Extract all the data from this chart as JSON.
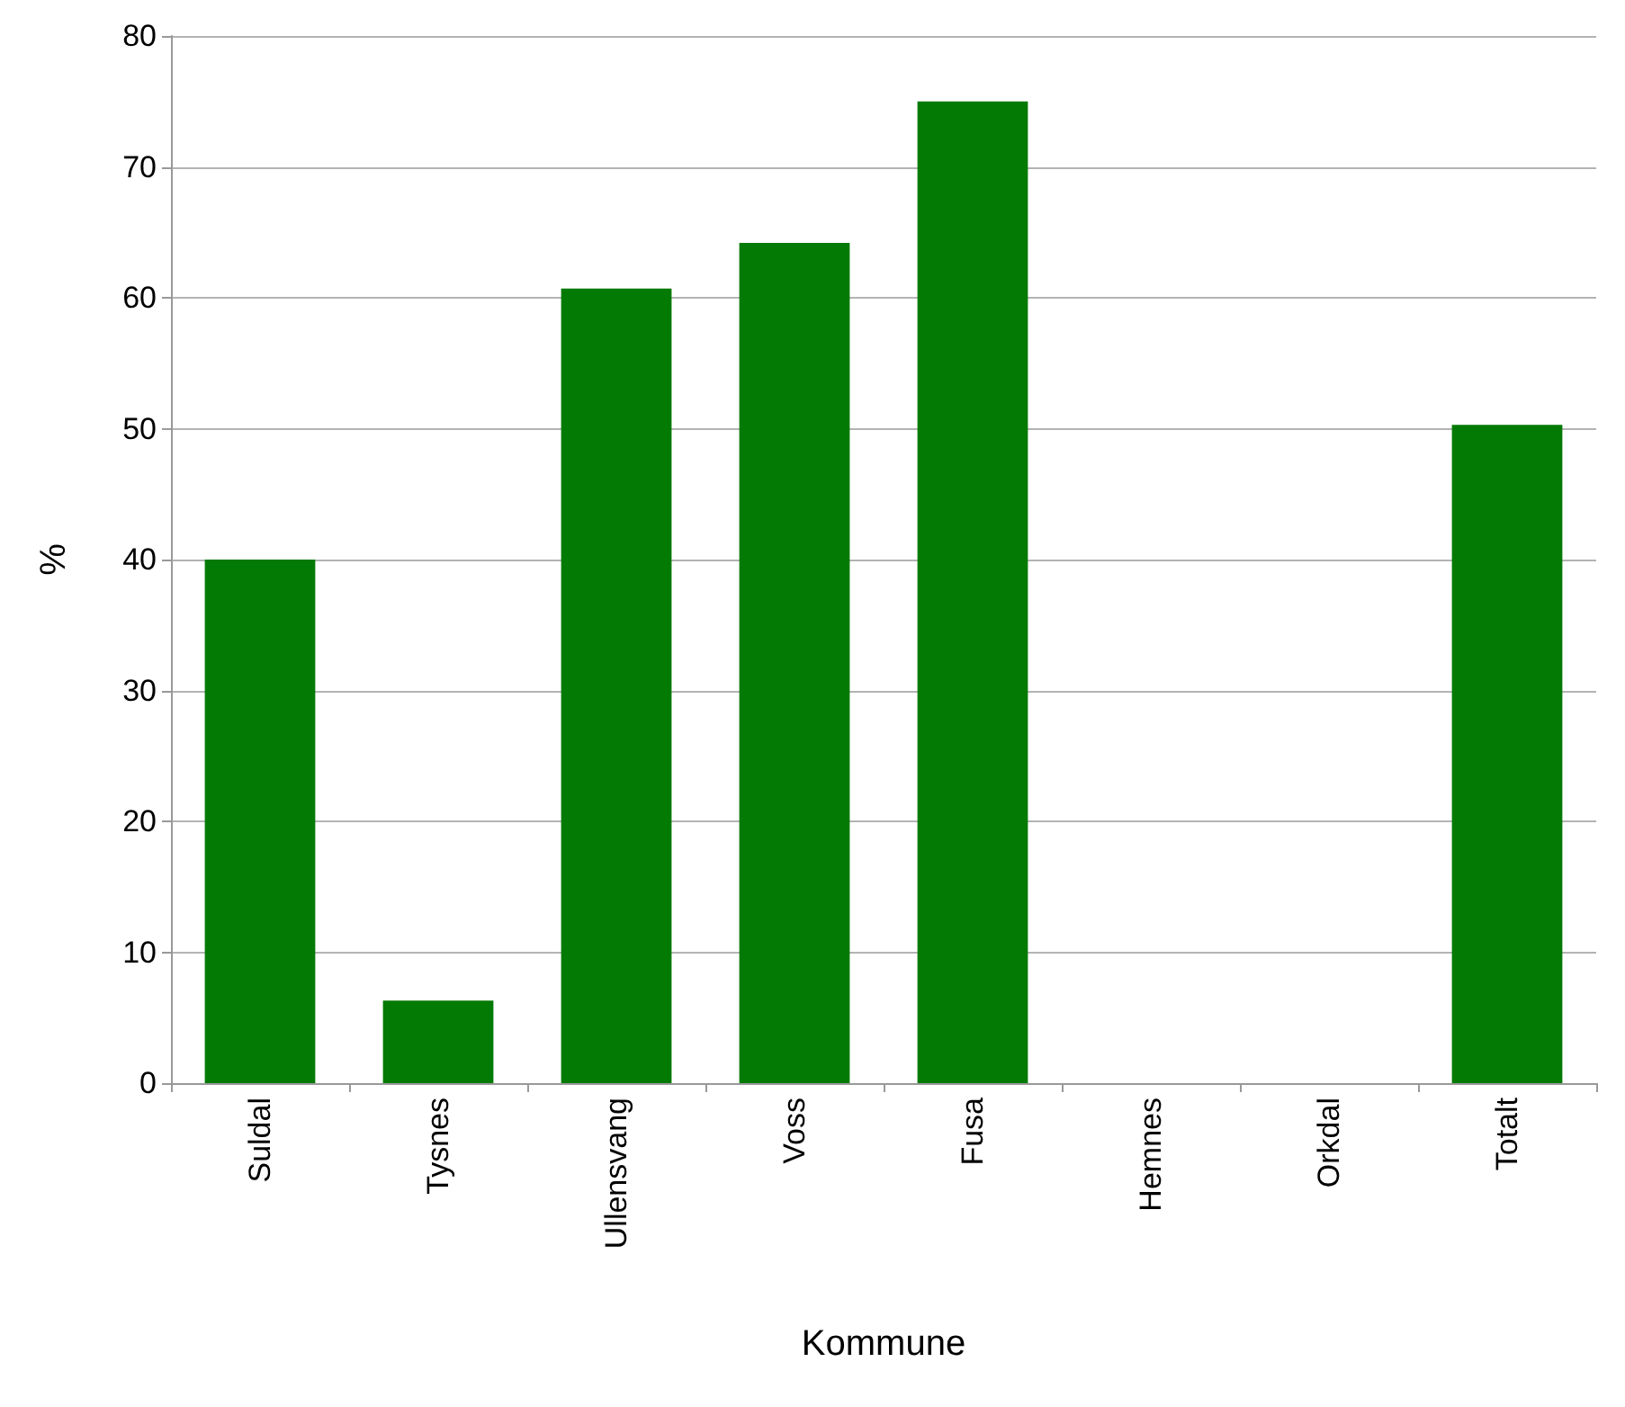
{
  "chart_data": {
    "type": "bar",
    "xlabel": "Kommune",
    "ylabel": "%",
    "categories": [
      "Suldal",
      "Tysnes",
      "Ullensvang",
      "Voss",
      "Fusa",
      "Hemnes",
      "Orkdal",
      "Totalt"
    ],
    "values": [
      40,
      6.3,
      60.7,
      64.2,
      75,
      0,
      0,
      50.3
    ],
    "color": "#037a03",
    "ylim": [
      0,
      80
    ],
    "yticks": [
      0,
      10,
      20,
      30,
      40,
      50,
      60,
      70,
      80
    ],
    "grid": "y"
  }
}
